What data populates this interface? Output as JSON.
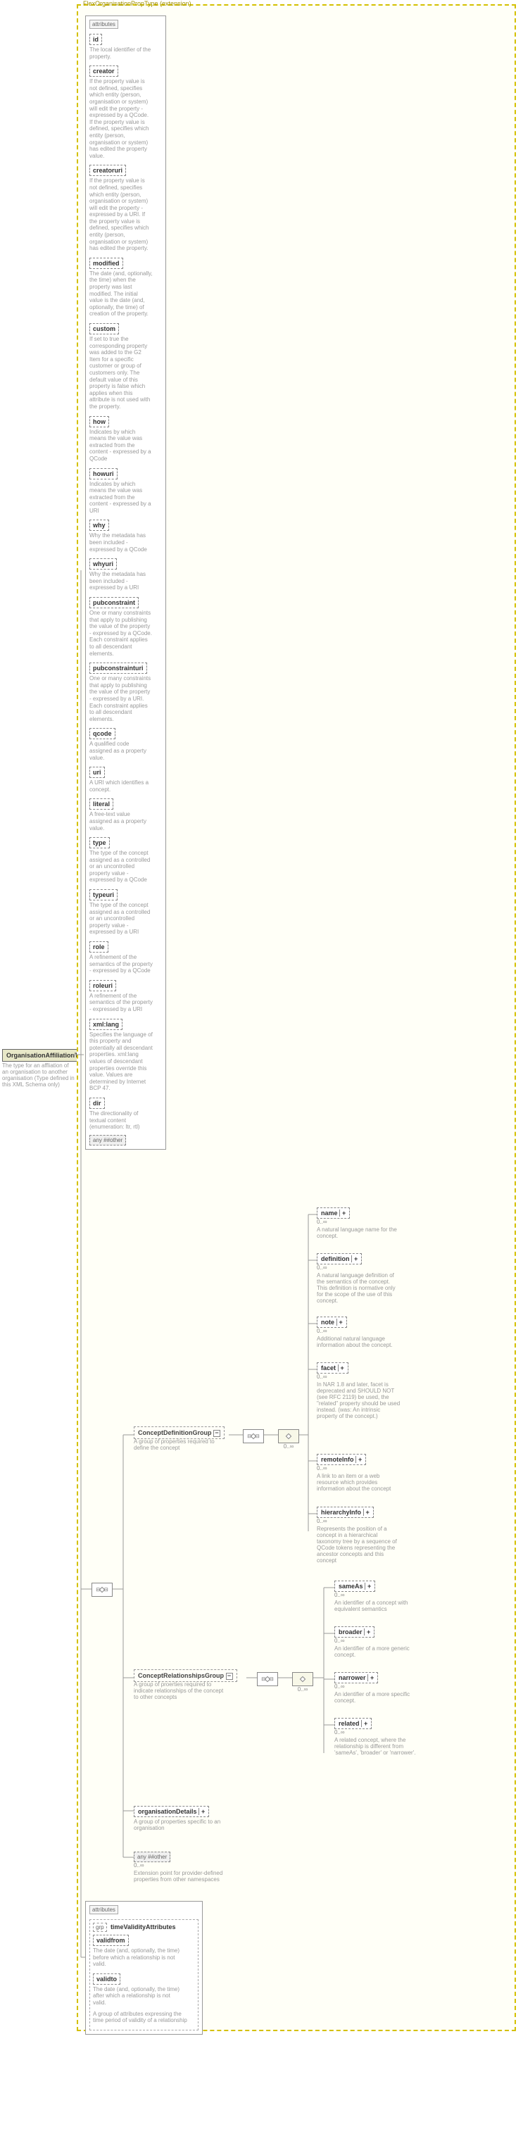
{
  "root": {
    "name": "OrganisationAffiliationType",
    "desc": "The type for an affliation of an organisation to another organisation (Type defined in this XML Schema only)"
  },
  "extension_label": "FlexOrganisationPropType (extension)",
  "attrs_label": "attributes",
  "attrs1": [
    {
      "n": "id",
      "d": "The local identifier of the property."
    },
    {
      "n": "creator",
      "d": "If the property value is not defined, specifies which entity (person, organisation or system) will edit the property - expressed by a QCode. If the property value is defined, specifies which entity (person, organisation or system) has edited the property value."
    },
    {
      "n": "creatoruri",
      "d": "If the property value is not defined, specifies which entity (person, organisation or system) will edit the property - expressed by a URI. If the property value is defined, specifies which entity (person, organisation or system) has edited the property."
    },
    {
      "n": "modified",
      "d": "The date (and, optionally, the time) when the property was last modified. The initial value is the date (and, optionally, the time) of creation of the property."
    },
    {
      "n": "custom",
      "d": "If set to true the corresponding property was added to the G2 Item for a specific customer or group of customers only. The default value of this property is false which applies when this attribute is not used with the property."
    },
    {
      "n": "how",
      "d": "Indicates by which means the value was extracted from the content - expressed by a QCode"
    },
    {
      "n": "howuri",
      "d": "Indicates by which means the value was extracted from the content - expressed by a URI"
    },
    {
      "n": "why",
      "d": "Why the metadata has been included - expressed by a QCode"
    },
    {
      "n": "whyuri",
      "d": "Why the metadata has been included - expressed by a URI"
    },
    {
      "n": "pubconstraint",
      "d": "One or many constraints that apply to publishing the value of the property - expressed by a QCode. Each constraint applies to all descendant elements."
    },
    {
      "n": "pubconstrainturi",
      "d": "One or many constraints that apply to publishing the value of the property - expressed by a URI. Each constraint applies to all descendant elements."
    },
    {
      "n": "qcode",
      "d": "A qualified code assigned as a property value."
    },
    {
      "n": "uri",
      "d": "A URI which identifies a concept."
    },
    {
      "n": "literal",
      "d": "A free-text value assigned as a property value."
    },
    {
      "n": "type",
      "d": "The type of the concept assigned as a controlled or an uncontrolled property value - expressed by a QCode"
    },
    {
      "n": "typeuri",
      "d": "The type of the concept assigned as a controlled or an uncontrolled property value - expressed by a URI"
    },
    {
      "n": "role",
      "d": "A refinement of the semantics of the property - expressed by a QCode"
    },
    {
      "n": "roleuri",
      "d": "A refinement of the semantics of the property - expressed by a URI"
    },
    {
      "n": "xml:lang",
      "d": "Specifies the language of this property and potentially all descendant properties. xml:lang values of descendant properties override this value. Values are determined by Internet BCP 47."
    },
    {
      "n": "dir",
      "d": "The directionality of textual content (enumeration: ltr, rtl)"
    }
  ],
  "any1": "any ##other",
  "groups": {
    "cdg": {
      "n": "ConceptDefinitionGroup",
      "d": "A group of properties required to define the concept"
    },
    "crg": {
      "n": "ConceptRelationshipsGroup",
      "d": "A group of proerties required to indicate relationships of the concept to other concepts"
    },
    "org": {
      "n": "organisationDetails",
      "d": "A group of properties specific to an organisation"
    }
  },
  "any2": {
    "n": "any ##other",
    "card": "0..∞",
    "d": "Extension point for provider-defined properties from other namespaces"
  },
  "cdg_children": [
    {
      "n": "name",
      "card": "0..∞",
      "d": "A natural language name for the concept."
    },
    {
      "n": "definition",
      "card": "0..∞",
      "d": "A natural language definition of the semantics of the concept. This definition is normative only for the scope of the use of this concept."
    },
    {
      "n": "note",
      "card": "0..∞",
      "d": "Additional natural language information about the concept."
    },
    {
      "n": "facet",
      "card": "0..∞",
      "d": "In NAR 1.8 and later, facet is deprecated and SHOULD NOT (see RFC 2119) be used, the \"related\" property should be used instead. (was: An intrinsic property of the concept.)"
    },
    {
      "n": "remoteInfo",
      "card": "0..∞",
      "d": "A link to an item or a web resource which provides information about the concept"
    },
    {
      "n": "hierarchyInfo",
      "card": "0..∞",
      "d": "Represents the position of a concept in a hierarchical taxonomy tree by a sequence of QCode tokens representing the ancestor concepts and this concept"
    }
  ],
  "crg_children": [
    {
      "n": "sameAs",
      "card": "0..∞",
      "d": "An identifier of a concept with equivalent semantics"
    },
    {
      "n": "broader",
      "card": "0..∞",
      "d": "An identifier of a more generic concept."
    },
    {
      "n": "narrower",
      "card": "0..∞",
      "d": "An identifier of a more specific concept."
    },
    {
      "n": "related",
      "card": "0..∞",
      "d": "A related concept, where the relationship is different from 'sameAs', 'broader' or 'narrower'."
    }
  ],
  "attrs2": {
    "group": "timeValidityAttributes",
    "items": [
      {
        "n": "validfrom",
        "d": "The date (and, optionally, the time) before which a relationship is not valid."
      },
      {
        "n": "validto",
        "d": "The date (and, optionally, the time) after which a relationship is not valid."
      }
    ],
    "group_desc": "A group of attributes expressing the time period of validity of a relationship"
  },
  "colors": {
    "ext_border": "#d4c000",
    "ext_bg": "#fffff7",
    "box_border": "#888",
    "text": "#666",
    "desc": "#999"
  }
}
